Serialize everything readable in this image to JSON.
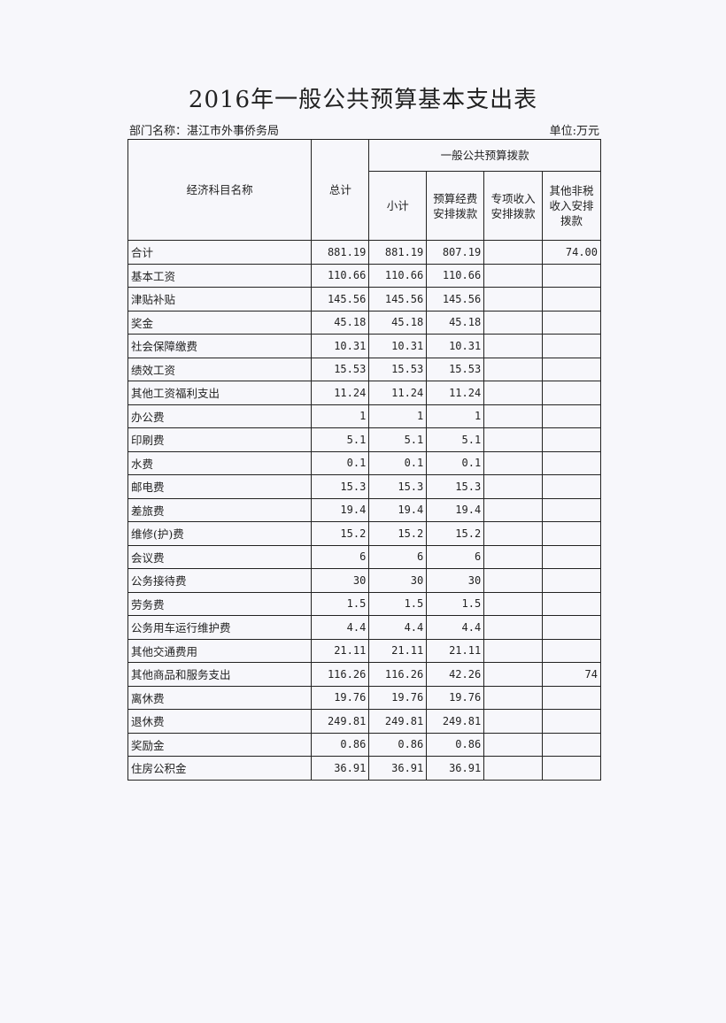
{
  "title": "2016年一般公共预算基本支出表",
  "department": "部门名称：湛江市外事侨务局",
  "unit": "单位:万元",
  "headers": {
    "name": "经济科目名称",
    "total": "总计",
    "group": "一般公共预算拨款",
    "subtotal": "小计",
    "budget": "预算经费安排拨款",
    "special": "专项收入安排拨款",
    "other": "其他非税收入安排拨款"
  },
  "rows": [
    {
      "name": "合计",
      "total": "881.19",
      "subtotal": "881.19",
      "budget": "807.19",
      "special": "",
      "other": "74.00"
    },
    {
      "name": "基本工资",
      "total": "110.66",
      "subtotal": "110.66",
      "budget": "110.66",
      "special": "",
      "other": ""
    },
    {
      "name": "津贴补贴",
      "total": "145.56",
      "subtotal": "145.56",
      "budget": "145.56",
      "special": "",
      "other": ""
    },
    {
      "name": "奖金",
      "total": "45.18",
      "subtotal": "45.18",
      "budget": "45.18",
      "special": "",
      "other": ""
    },
    {
      "name": "社会保障缴费",
      "total": "10.31",
      "subtotal": "10.31",
      "budget": "10.31",
      "special": "",
      "other": ""
    },
    {
      "name": "绩效工资",
      "total": "15.53",
      "subtotal": "15.53",
      "budget": "15.53",
      "special": "",
      "other": ""
    },
    {
      "name": "其他工资福利支出",
      "total": "11.24",
      "subtotal": "11.24",
      "budget": "11.24",
      "special": "",
      "other": ""
    },
    {
      "name": "办公费",
      "total": "1",
      "subtotal": "1",
      "budget": "1",
      "special": "",
      "other": ""
    },
    {
      "name": "印刷费",
      "total": "5.1",
      "subtotal": "5.1",
      "budget": "5.1",
      "special": "",
      "other": ""
    },
    {
      "name": "水费",
      "total": "0.1",
      "subtotal": "0.1",
      "budget": "0.1",
      "special": "",
      "other": ""
    },
    {
      "name": "邮电费",
      "total": "15.3",
      "subtotal": "15.3",
      "budget": "15.3",
      "special": "",
      "other": ""
    },
    {
      "name": "差旅费",
      "total": "19.4",
      "subtotal": "19.4",
      "budget": "19.4",
      "special": "",
      "other": ""
    },
    {
      "name": "维修(护)费",
      "total": "15.2",
      "subtotal": "15.2",
      "budget": "15.2",
      "special": "",
      "other": ""
    },
    {
      "name": "会议费",
      "total": "6",
      "subtotal": "6",
      "budget": "6",
      "special": "",
      "other": ""
    },
    {
      "name": "公务接待费",
      "total": "30",
      "subtotal": "30",
      "budget": "30",
      "special": "",
      "other": ""
    },
    {
      "name": "劳务费",
      "total": "1.5",
      "subtotal": "1.5",
      "budget": "1.5",
      "special": "",
      "other": ""
    },
    {
      "name": "公务用车运行维护费",
      "total": "4.4",
      "subtotal": "4.4",
      "budget": "4.4",
      "special": "",
      "other": ""
    },
    {
      "name": "其他交通费用",
      "total": "21.11",
      "subtotal": "21.11",
      "budget": "21.11",
      "special": "",
      "other": ""
    },
    {
      "name": "其他商品和服务支出",
      "total": "116.26",
      "subtotal": "116.26",
      "budget": "42.26",
      "special": "",
      "other": "74"
    },
    {
      "name": "离休费",
      "total": "19.76",
      "subtotal": "19.76",
      "budget": "19.76",
      "special": "",
      "other": ""
    },
    {
      "name": "退休费",
      "total": "249.81",
      "subtotal": "249.81",
      "budget": "249.81",
      "special": "",
      "other": ""
    },
    {
      "name": "奖励金",
      "total": "0.86",
      "subtotal": "0.86",
      "budget": "0.86",
      "special": "",
      "other": ""
    },
    {
      "name": "住房公积金",
      "total": "36.91",
      "subtotal": "36.91",
      "budget": "36.91",
      "special": "",
      "other": ""
    }
  ]
}
